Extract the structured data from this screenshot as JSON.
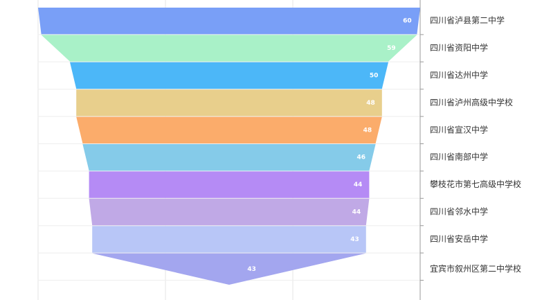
{
  "chart_data": {
    "type": "funnel",
    "categories": [
      "四川省泸县第二中学",
      "四川省资阳中学",
      "四川省达州中学",
      "四川省泸州高级中学校",
      "四川省宣汉中学",
      "四川省南部中学",
      "攀枝花市第七高级中学校",
      "四川省邻水中学",
      "四川省安岳中学",
      "宜宾市叙州区第二中学校"
    ],
    "values": [
      60,
      59,
      50,
      48,
      48,
      46,
      44,
      44,
      43,
      43
    ],
    "colors": [
      "#799ff7",
      "#a9f1c8",
      "#4cb7f8",
      "#e8cf8c",
      "#fbac6b",
      "#85cbe9",
      "#b58bf5",
      "#c0a9e6",
      "#b8c6f7",
      "#a3a6ef"
    ],
    "xlim": [
      0,
      60
    ],
    "xticks": [
      0,
      20,
      40,
      60
    ],
    "grid": true
  }
}
